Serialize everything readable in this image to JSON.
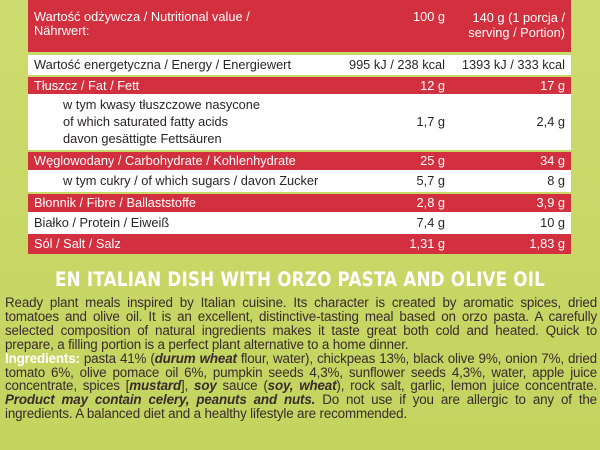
{
  "table": {
    "header": {
      "name_line1": "Wartość odżywcza / Nutritional value /",
      "name_line2": "Nährwert:",
      "col1": "100 g",
      "col2_line1": "140 g (1 porcja /",
      "col2_line2": "serving / Portion)"
    },
    "rows": [
      {
        "name": "Wartość energetyczna / Energy / Energiewert",
        "v1": "995 kJ / 238 kcal",
        "v2": "1393 kJ / 333 kcal",
        "style": "white"
      },
      {
        "name": "Tłuszcz / Fat / Fett",
        "v1": "12 g",
        "v2": "17 g",
        "style": "red"
      },
      {
        "name_lines": [
          "w tym kwasy tłuszczowe nasycone",
          "of which saturated fatty acids",
          "davon gesättigte Fettsäuren"
        ],
        "v1": "1,7 g",
        "v2": "2,4 g",
        "style": "white"
      },
      {
        "name": "Węglowodany / Carbohydrate / Kohlenhydrate",
        "v1": "25 g",
        "v2": "34 g",
        "style": "red"
      },
      {
        "name": "w tym cukry / of which sugars / davon Zucker",
        "v1": "5,7 g",
        "v2": "8 g",
        "style": "white"
      },
      {
        "name": "Błonnik / Fibre / Ballaststoffe",
        "v1": "2,8 g",
        "v2": "3,9 g",
        "style": "red"
      },
      {
        "name": "Białko / Protein / Eiweiß",
        "v1": "7,4 g",
        "v2": "10 g",
        "style": "white"
      },
      {
        "name": "Sól / Salt / Salz",
        "v1": "1,31 g",
        "v2": "1,83 g",
        "style": "red"
      }
    ]
  },
  "title": "EN ITALIAN DISH WITH ORZO PASTA AND OLIVE OIL",
  "description": "Ready plant meals inspired by Italian cuisine. Its character is created by aromatic spices, dried tomatoes and olive oil. It is an excellent, distinctive-tasting meal based on orzo pasta. A carefully selected composition of natural ingredients makes it taste great both cold and heated. Quick to prepare, a filling portion is a perfect plant alternative to a home dinner.",
  "ingredients": {
    "label": "Ingredients:",
    "t1": " pasta 41% (",
    "b1": "durum wheat",
    "t2": " flour, water), chickpeas 13%, black olive 9%, onion 7%, dried tomato 6%, olive pomace oil 6%, pumpkin seeds 4,3%, sunflower seeds 4,3%, water, apple juice concentrate, spices [",
    "b2": "mustard",
    "t3": "], ",
    "b3": "soy",
    "t4": " sauce (",
    "b4": "soy, wheat",
    "t5": "), rock salt, garlic, lemon juice concentrate. ",
    "b5": "Product may contain celery, peanuts and nuts.",
    "t6": " Do not use if you are allergic to any of the ingredients. A balanced diet and a healthy lifestyle are recommended."
  }
}
